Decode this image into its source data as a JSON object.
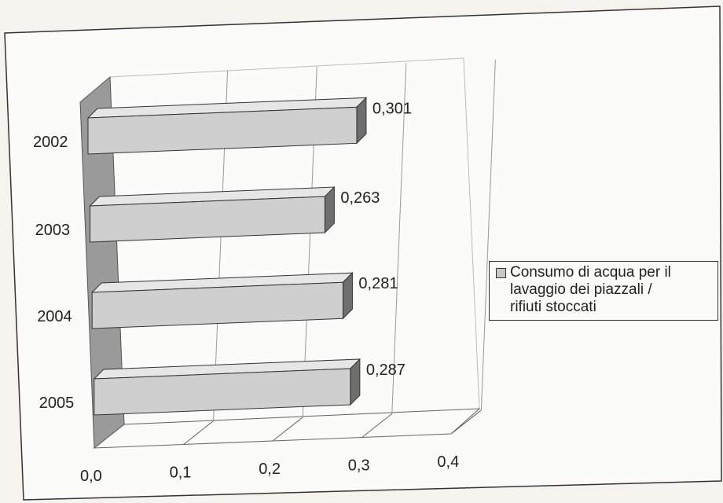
{
  "chart_data": {
    "type": "bar",
    "orientation": "horizontal",
    "three_d": true,
    "categories": [
      "2002",
      "2003",
      "2004",
      "2005"
    ],
    "series": [
      {
        "name": "Consumo di acqua per il lavaggio dei piazzali / rifiuti stoccati",
        "values": [
          0.301,
          0.263,
          0.281,
          0.287
        ]
      }
    ],
    "data_labels": [
      "0,301",
      "0,263",
      "0,281",
      "0,287"
    ],
    "x_ticks": [
      "0,0",
      "0,1",
      "0,2",
      "0,3",
      "0,4"
    ],
    "xlim": [
      0,
      0.4
    ],
    "grid": true,
    "legend_position": "right",
    "colors": {
      "bar": "#cfcfcf",
      "bar_top": "#e6e6e6",
      "bar_side": "#6e6e6e",
      "wall": "#9a9a9a"
    }
  },
  "legend": {
    "lines": [
      "Consumo di acqua per il",
      "lavaggio dei piazzali /",
      "rifiuti stoccati"
    ]
  }
}
